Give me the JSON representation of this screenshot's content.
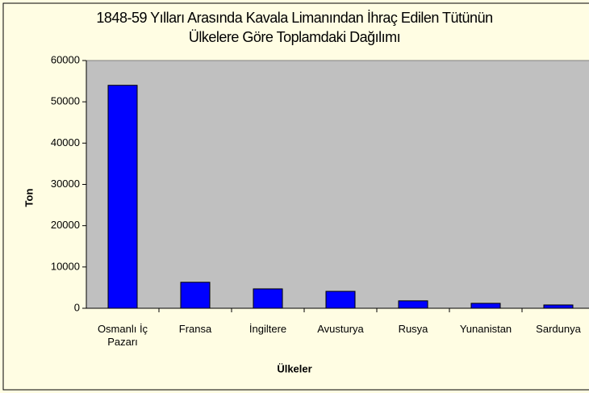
{
  "chart_data": {
    "type": "bar",
    "title": [
      "1848-59 Yılları Arasında Kavala Limanından İhraç Edilen Tütünün",
      "Ülkelere Göre Toplamdaki Dağılımı"
    ],
    "x_label": "Ülkeler",
    "y_label": "Ton",
    "categories": [
      "Osmanlı İç Pazarı",
      "Fransa",
      "İngiltere",
      "Avusturya",
      "Rusya",
      "Yunanistan",
      "Sardunya"
    ],
    "values": [
      54000,
      6300,
      4700,
      4100,
      1800,
      1200,
      800
    ],
    "color": "#0000ff",
    "ylim": [
      0,
      60000
    ],
    "yticks": [
      0,
      10000,
      20000,
      30000,
      40000,
      50000,
      60000
    ],
    "grid": false
  }
}
